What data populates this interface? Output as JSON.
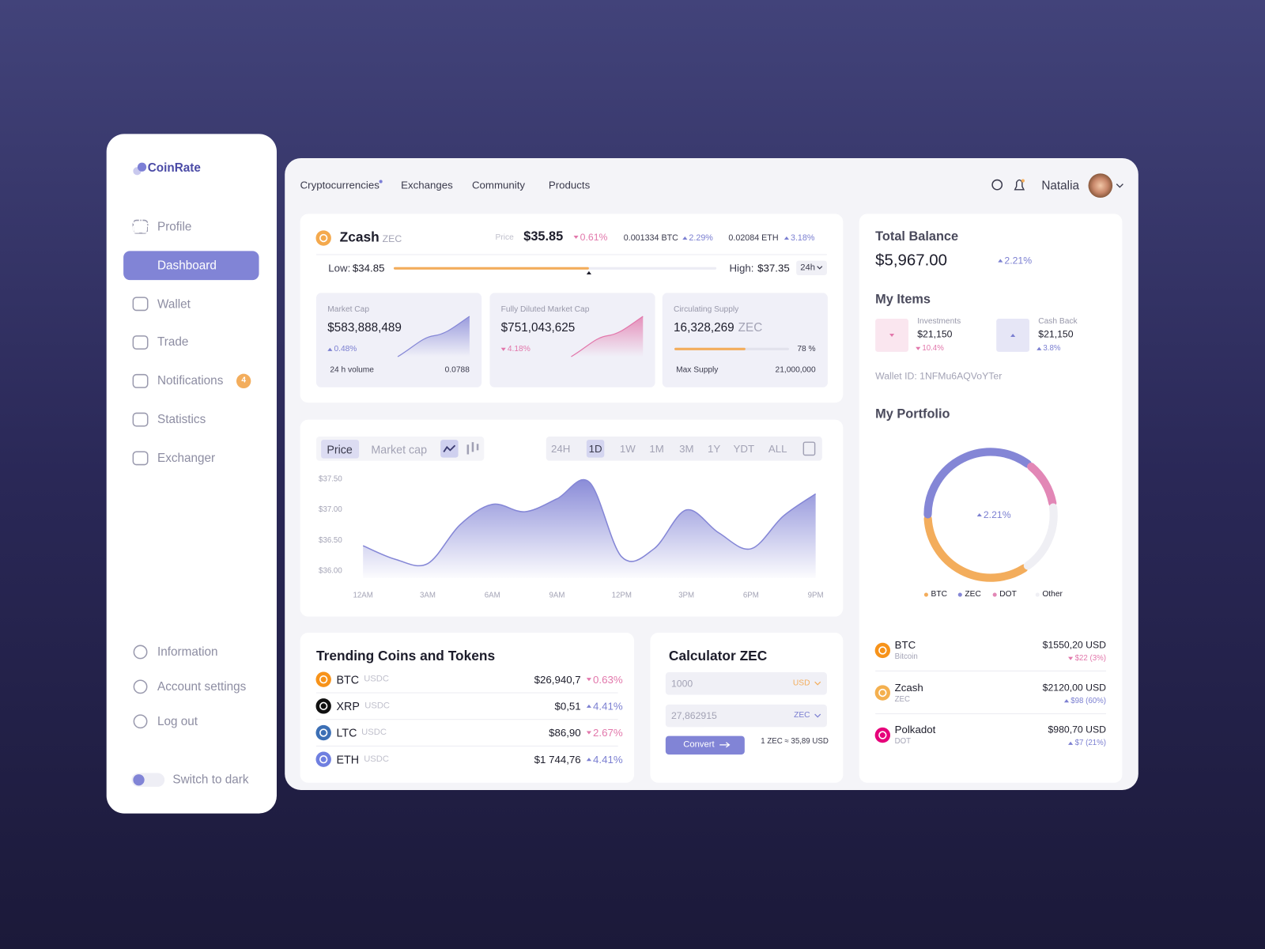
{
  "sidebar": {
    "logo": "CoinRate",
    "menu": [
      "Profile",
      "Dashboard",
      "Wallet",
      "Trade",
      "Notifications",
      "Statistics",
      "Exchanger"
    ],
    "active": "Dashboard",
    "badge": "4",
    "bottom_menu": [
      "Information",
      "Account settings",
      "Log out"
    ],
    "toggle": "Switch to dark"
  },
  "nav": {
    "links": [
      "Cryptocurrencies",
      "Exchanges",
      "Community",
      "Products"
    ],
    "user": "Natalia"
  },
  "coin": {
    "name": "Zcash",
    "symbol": "ZEC",
    "price_label": "Price",
    "price": "$35.85",
    "change": "0.61%",
    "trend": "down",
    "btc": "0.001334 BTC",
    "btc_change": "2.29%",
    "btc_trend": "up",
    "eth": "0.02084 ETH",
    "eth_change": "3.18%",
    "eth_trend": "up",
    "low_label": "Low:",
    "low": "$34.85",
    "high_label": "High:",
    "high": "$37.35",
    "period": "24h"
  },
  "cards": [
    {
      "label": "Market Cap",
      "value": "$583,888,489",
      "change": "0.48%",
      "trend": "up",
      "foot_label": "24 h volume",
      "foot_value": "0.0788"
    },
    {
      "label": "Fully Diluted Market Cap",
      "value": "$751,043,625",
      "change": "4.18%",
      "trend": "down"
    },
    {
      "label": "Circulating Supply",
      "value": "16,328,269",
      "unit": "ZEC",
      "percent": "78 %",
      "foot_label": "Max Supply",
      "foot_value": "21,000,000"
    }
  ],
  "price_chart": {
    "type": "area",
    "tabs": [
      "Price",
      "Market cap"
    ],
    "ranges": [
      "24H",
      "1D",
      "1W",
      "1M",
      "3M",
      "1Y",
      "YDT",
      "ALL"
    ],
    "active_range": "1D",
    "x": [
      "12AM",
      null,
      "3AM",
      null,
      "6AM",
      null,
      "9AM",
      null,
      "12PM",
      null,
      "3PM",
      null,
      "6PM",
      null,
      "9PM"
    ],
    "values": [
      36.42,
      36.2,
      36.13,
      36.76,
      37.09,
      36.97,
      37.18,
      37.45,
      36.24,
      36.37,
      37.0,
      36.63,
      36.37,
      36.9,
      37.26
    ],
    "ylim": [
      35.9,
      37.6
    ],
    "yticks": [
      {
        "value": 37.5,
        "label": "$37.50"
      },
      {
        "value": 37,
        "label": "$37.00"
      },
      {
        "value": 36.5,
        "label": "$36.50"
      },
      {
        "value": 36,
        "label": "$36.00"
      }
    ],
    "color": "#8486d6"
  },
  "trending": {
    "title": "Trending Coins and Tokens",
    "rows": [
      {
        "symbol": "BTC",
        "pair": "USDC",
        "price": "$26,940,7",
        "change": "0.63%",
        "trend": "down",
        "color": "#f7931a"
      },
      {
        "symbol": "XRP",
        "pair": "USDC",
        "price": "$0,51",
        "change": "4.41%",
        "trend": "up",
        "color": "#111111"
      },
      {
        "symbol": "LTC",
        "pair": "USDC",
        "price": "$86,90",
        "change": "2.67%",
        "trend": "down",
        "color": "#3c6fb5"
      },
      {
        "symbol": "ETH",
        "pair": "USDC",
        "price": "$1 744,76",
        "change": "4.41%",
        "trend": "up",
        "color": "#6f7fe0"
      }
    ]
  },
  "calculator": {
    "title": "Calculator ZEC",
    "amount": "1000",
    "currency": "USD",
    "result": "27,862915",
    "result_currency": "ZEC",
    "button": "Convert",
    "rate": "1 ZEC ≈ 35,89 USD"
  },
  "balance": {
    "title": "Total Balance",
    "value": "$5,967.00",
    "change": "2.21%",
    "trend": "up",
    "items_title": "My Items",
    "items": [
      {
        "label": "Investments",
        "value": "$21,150",
        "change": "10.4%",
        "trend": "down"
      },
      {
        "label": "Cash Back",
        "value": "$21,150",
        "change": "3.8%",
        "trend": "up"
      }
    ],
    "wallet": "Wallet ID: 1NFMu6AQVoYTer"
  },
  "portfolio": {
    "title": "My Portfolio",
    "chart": {
      "type": "pie",
      "center": "2.21%",
      "trend": "up",
      "categories": [
        "BTC",
        "ZEC",
        "DOT",
        "Other"
      ],
      "values": [
        34,
        36,
        12,
        18
      ],
      "colors": [
        "#f3ad5c",
        "#8486d6",
        "#e287b6",
        "#efeff4"
      ]
    },
    "assets": [
      {
        "symbol": "BTC",
        "name": "Bitcoin",
        "value": "$1550,20 USD",
        "change": "$22 (3%)",
        "trend": "down",
        "color": "#f7931a"
      },
      {
        "symbol": "Zcash",
        "name": "ZEC",
        "value": "$2120,00 USD",
        "change": "$98 (60%)",
        "trend": "up",
        "color": "#f4b04f"
      },
      {
        "symbol": "Polkadot",
        "name": "DOT",
        "value": "$980,70 USD",
        "change": "$7 (21%)",
        "trend": "up",
        "color": "#e6007a"
      }
    ]
  }
}
